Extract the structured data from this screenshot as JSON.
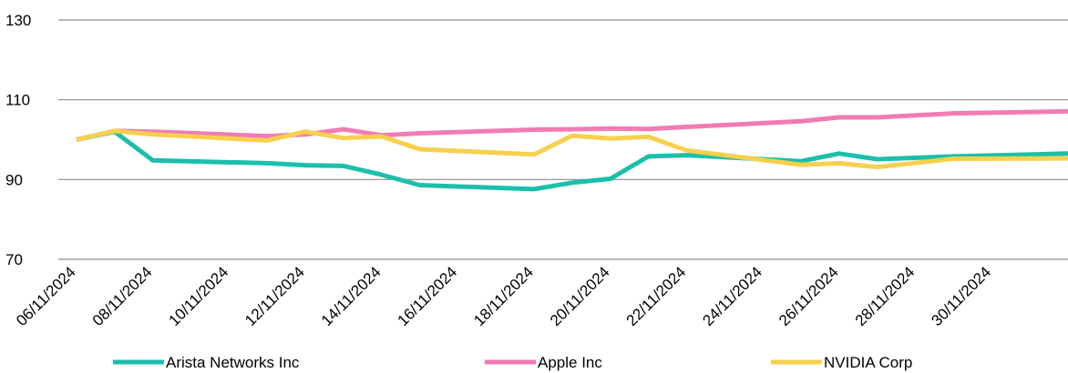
{
  "chart_data": {
    "type": "line",
    "title": "",
    "xlabel": "",
    "ylabel": "",
    "ylim": [
      70,
      130
    ],
    "yticks": [
      70,
      90,
      110,
      130
    ],
    "grid": true,
    "legend_position": "bottom",
    "x": [
      "06/11/2024",
      "07/11/2024",
      "08/11/2024",
      "11/11/2024",
      "12/11/2024",
      "13/11/2024",
      "14/11/2024",
      "15/11/2024",
      "18/11/2024",
      "19/11/2024",
      "20/11/2024",
      "21/11/2024",
      "22/11/2024",
      "25/11/2024",
      "26/11/2024",
      "27/11/2024",
      "29/11/2024",
      "02/12/2024"
    ],
    "xtick_labels": [
      "06/11/2024",
      "08/11/2024",
      "10/11/2024",
      "12/11/2024",
      "14/11/2024",
      "16/11/2024",
      "18/11/2024",
      "20/11/2024",
      "22/11/2024",
      "24/11/2024",
      "26/11/2024",
      "28/11/2024",
      "30/11/2024"
    ],
    "series": [
      {
        "name": "Arista Networks Inc",
        "color": "#1bbfaa",
        "values": [
          100,
          102,
          94.8,
          94.1,
          93.6,
          93.4,
          91.2,
          88.6,
          87.6,
          89.2,
          90.2,
          95.8,
          96.1,
          94.6,
          96.5,
          95.1,
          95.8,
          96.5
        ]
      },
      {
        "name": "Apple Inc",
        "color": "#f17bb3",
        "values": [
          100,
          102.2,
          102,
          100.9,
          101.3,
          102.6,
          101.1,
          101.6,
          102.5,
          102.6,
          102.8,
          102.7,
          103.2,
          104.6,
          105.6,
          105.6,
          106.6,
          107.1
        ]
      },
      {
        "name": "NVIDIA Corp",
        "color": "#f7d04d",
        "values": [
          100,
          102.2,
          101.3,
          99.8,
          102,
          100.4,
          100.8,
          97.6,
          96.3,
          101,
          100.3,
          100.7,
          97.3,
          93.7,
          94.1,
          93.1,
          95.2,
          95.3
        ]
      }
    ]
  }
}
